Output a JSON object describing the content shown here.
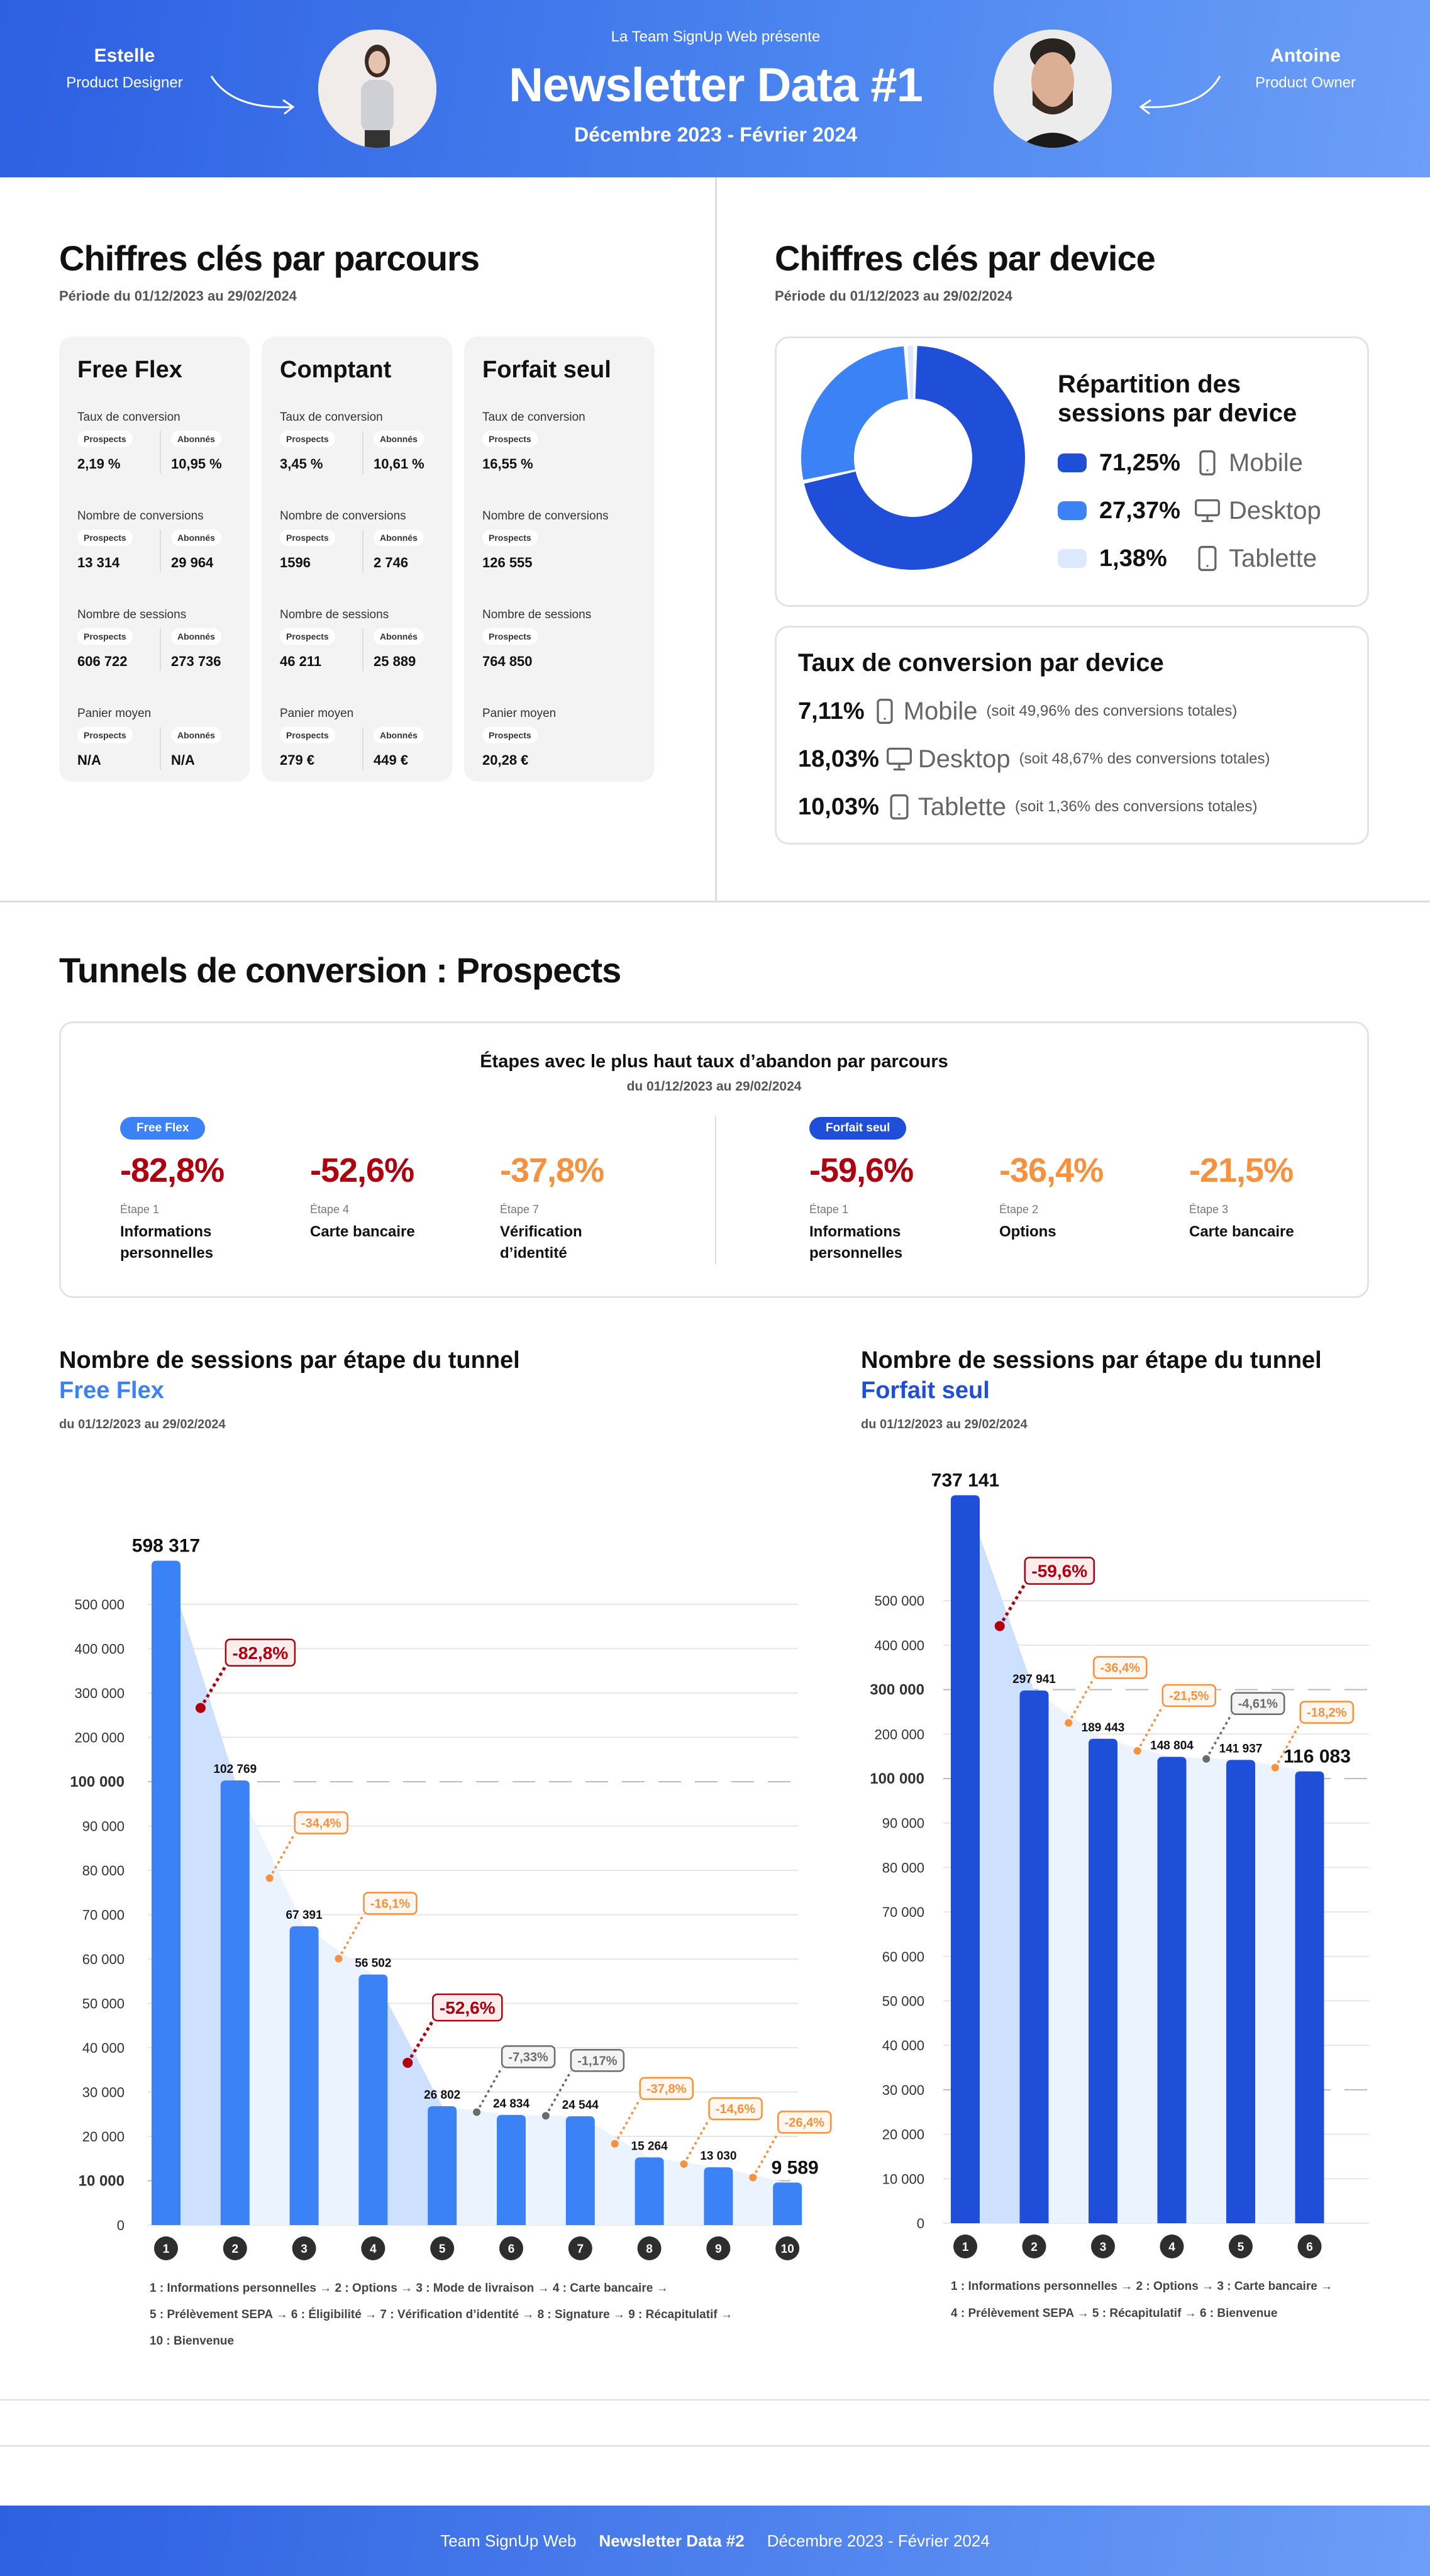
{
  "header": {
    "intro": "La Team SignUp Web présente",
    "title": "Newsletter Data #1",
    "period": "Décembre 2023 - Février 2024",
    "left_person": {
      "name": "Estelle",
      "role": "Product Designer"
    },
    "right_person": {
      "name": "Antoine",
      "role": "Product Owner"
    }
  },
  "key_figures": {
    "title": "Chiffres clés par parcours",
    "period": "Période du 01/12/2023 au 29/02/2024",
    "cards": [
      {
        "title": "Free Flex",
        "metrics": [
          {
            "label": "Taux de conversion",
            "prospects": "2,19 %",
            "abonnes": "10,95 %"
          },
          {
            "label": "Nombre de conversions",
            "prospects": "13 314",
            "abonnes": "29 964"
          },
          {
            "label": "Nombre de sessions",
            "prospects": "606 722",
            "abonnes": "273 736"
          },
          {
            "label": "Panier moyen",
            "prospects": "N/A",
            "abonnes": "N/A"
          }
        ]
      },
      {
        "title": "Comptant",
        "metrics": [
          {
            "label": "Taux de conversion",
            "prospects": "3,45 %",
            "abonnes": "10,61 %"
          },
          {
            "label": "Nombre de conversions",
            "prospects": "1596",
            "abonnes": "2 746"
          },
          {
            "label": "Nombre de sessions",
            "prospects": "46 211",
            "abonnes": "25 889"
          },
          {
            "label": "Panier moyen",
            "prospects": "279 €",
            "abonnes": "449 €"
          }
        ]
      },
      {
        "title": "Forfait seul",
        "metrics": [
          {
            "label": "Taux de conversion",
            "prospects": "16,55 %"
          },
          {
            "label": "Nombre de conversions",
            "prospects": "126 555"
          },
          {
            "label": "Nombre de sessions",
            "prospects": "764 850"
          },
          {
            "label": "Panier moyen",
            "prospects": "20,28 €"
          }
        ]
      }
    ],
    "pill_prospects": "Prospects",
    "pill_abonnes": "Abonnés"
  },
  "devices": {
    "title": "Chiffres clés par device",
    "period": "Période du 01/12/2023 au 29/02/2024",
    "sessions_title_1": "Répartition des",
    "sessions_title_2": "sessions par device",
    "sessions": [
      {
        "pct": "71,25%",
        "value": 71.25,
        "label": "Mobile",
        "icon": "mobile-icon",
        "color": "#1f4fd8"
      },
      {
        "pct": "27,37%",
        "value": 27.37,
        "label": "Desktop",
        "icon": "desktop-icon",
        "color": "#3b82f6"
      },
      {
        "pct": "1,38%",
        "value": 1.38,
        "label": "Tablette",
        "icon": "tablet-icon",
        "color": "#dbe8fe"
      }
    ],
    "conversion_title": "Taux de conversion par device",
    "conversion": [
      {
        "pct": "7,11%",
        "label": "Mobile",
        "icon": "mobile-icon",
        "note": "(soit 49,96% des conversions totales)"
      },
      {
        "pct": "18,03%",
        "label": "Desktop",
        "icon": "desktop-icon",
        "note": "(soit 48,67% des conversions totales)"
      },
      {
        "pct": "10,03%",
        "label": "Tablette",
        "icon": "tablet-icon",
        "note": "(soit 1,36% des conversions totales)"
      }
    ]
  },
  "tunnels": {
    "title": "Tunnels de conversion : Prospects",
    "abandon_title": "Étapes avec le plus haut taux d’abandon par parcours",
    "abandon_period": "du 01/12/2023 au 29/02/2024",
    "groups": [
      {
        "tag": "Free Flex",
        "color": "#3b82f6",
        "items": [
          {
            "pct": "-82,8%",
            "severity": "red",
            "step": "Étape 1",
            "name": "Informations personnelles"
          },
          {
            "pct": "-52,6%",
            "severity": "red",
            "step": "Étape 4",
            "name": "Carte bancaire"
          },
          {
            "pct": "-37,8%",
            "severity": "orange",
            "step": "Étape 7",
            "name": "Vérification d’identité"
          }
        ]
      },
      {
        "tag": "Forfait seul",
        "color": "#1f4fd8",
        "items": [
          {
            "pct": "-59,6%",
            "severity": "red",
            "step": "Étape 1",
            "name": "Informations personnelles"
          },
          {
            "pct": "-36,4%",
            "severity": "orange",
            "step": "Étape 2",
            "name": "Options"
          },
          {
            "pct": "-21,5%",
            "severity": "orange",
            "step": "Étape 3",
            "name": "Carte bancaire"
          }
        ]
      }
    ]
  },
  "severity_colors": {
    "red": "#b0000f",
    "orange": "#f7913d",
    "gray": "#6b6b6b"
  },
  "chart_data": [
    {
      "type": "bar",
      "title": "Nombre de sessions par étape du tunnel",
      "subtitle": "Free Flex",
      "period": "du 01/12/2023 au 29/02/2024",
      "bar_color": "#3b82f6",
      "categories": [
        "1",
        "2",
        "3",
        "4",
        "5",
        "6",
        "7",
        "8",
        "9",
        "10"
      ],
      "values": [
        598317,
        102769,
        67391,
        56502,
        26802,
        24834,
        24544,
        15264,
        13030,
        9589
      ],
      "value_labels": [
        "598 317",
        "102 769",
        "67 391",
        "56 502",
        "26 802",
        "24 834",
        "24 544",
        "15 264",
        "13 030",
        "9 589"
      ],
      "drops": [
        {
          "label": "-82,8%",
          "severity": "red"
        },
        {
          "label": "-34,4%",
          "severity": "orange"
        },
        {
          "label": "-16,1%",
          "severity": "orange"
        },
        {
          "label": "-52,6%",
          "severity": "red"
        },
        {
          "label": "-7,33%",
          "severity": "gray"
        },
        {
          "label": "-1,17%",
          "severity": "gray"
        },
        {
          "label": "-37,8%",
          "severity": "orange"
        },
        {
          "label": "-14,6%",
          "severity": "orange"
        },
        {
          "label": "-26,4%",
          "severity": "orange"
        }
      ],
      "yaxis": "broken scale: 10 000 per step up to 100 000, then 100 000 per step",
      "ticks": [
        {
          "value": 0,
          "label": "0"
        },
        {
          "value": 10000,
          "label": "10 000",
          "emphasis": true
        },
        {
          "value": 20000,
          "label": "20 000"
        },
        {
          "value": 30000,
          "label": "30 000"
        },
        {
          "value": 40000,
          "label": "40 000"
        },
        {
          "value": 50000,
          "label": "50 000"
        },
        {
          "value": 60000,
          "label": "60 000"
        },
        {
          "value": 70000,
          "label": "70 000"
        },
        {
          "value": 80000,
          "label": "80 000"
        },
        {
          "value": 90000,
          "label": "90 000"
        },
        {
          "value": 100000,
          "label": "100 000",
          "emphasis": true
        },
        {
          "value": 200000,
          "label": "200 000"
        },
        {
          "value": 300000,
          "label": "300 000"
        },
        {
          "value": 400000,
          "label": "400 000"
        },
        {
          "value": 500000,
          "label": "500 000"
        }
      ],
      "legend": [
        "1 : Informations personnelles → 2 : Options → 3 : Mode de livraison → 4 : Carte bancaire →",
        "5 : Prélèvement SEPA → 6 : Éligibilité → 7 : Vérification d’identité → 8 : Signature → 9 : Récapitulatif →",
        "10 : Bienvenue"
      ]
    },
    {
      "type": "bar",
      "title": "Nombre de sessions par étape du tunnel",
      "subtitle": "Forfait seul",
      "period": "du 01/12/2023 au 29/02/2024",
      "bar_color": "#1f4fd8",
      "categories": [
        "1",
        "2",
        "3",
        "4",
        "5",
        "6"
      ],
      "values": [
        737141,
        297941,
        189443,
        148804,
        141937,
        116083
      ],
      "value_labels": [
        "737 141",
        "297 941",
        "189 443",
        "148 804",
        "141 937",
        "116 083"
      ],
      "drops": [
        {
          "label": "-59,6%",
          "severity": "red"
        },
        {
          "label": "-36,4%",
          "severity": "orange"
        },
        {
          "label": "-21,5%",
          "severity": "orange"
        },
        {
          "label": "-4,61%",
          "severity": "gray"
        },
        {
          "label": "-18,2%",
          "severity": "orange"
        }
      ],
      "yaxis": "broken scale: 10 000 per step up to 100 000, then 100 000 per step",
      "ticks": [
        {
          "value": 0,
          "label": "0"
        },
        {
          "value": 10000,
          "label": "10 000"
        },
        {
          "value": 20000,
          "label": "20 000"
        },
        {
          "value": 30000,
          "label": "30 000",
          "dashed": true
        },
        {
          "value": 40000,
          "label": "40 000"
        },
        {
          "value": 50000,
          "label": "50 000"
        },
        {
          "value": 60000,
          "label": "60 000"
        },
        {
          "value": 70000,
          "label": "70 000"
        },
        {
          "value": 80000,
          "label": "80 000"
        },
        {
          "value": 90000,
          "label": "90 000"
        },
        {
          "value": 100000,
          "label": "100 000",
          "emphasis": true
        },
        {
          "value": 200000,
          "label": "200 000"
        },
        {
          "value": 300000,
          "label": "300 000",
          "emphasis": true
        },
        {
          "value": 400000,
          "label": "400 000"
        },
        {
          "value": 500000,
          "label": "500 000"
        }
      ],
      "legend": [
        "1 : Informations personnelles → 2 : Options → 3 : Carte bancaire →",
        "4 : Prélèvement SEPA → 5 : Récapitulatif → 6 : Bienvenue"
      ]
    }
  ],
  "footer": {
    "team": "Team SignUp Web",
    "next": "Newsletter Data #2",
    "period": "Décembre 2023 - Février 2024"
  }
}
